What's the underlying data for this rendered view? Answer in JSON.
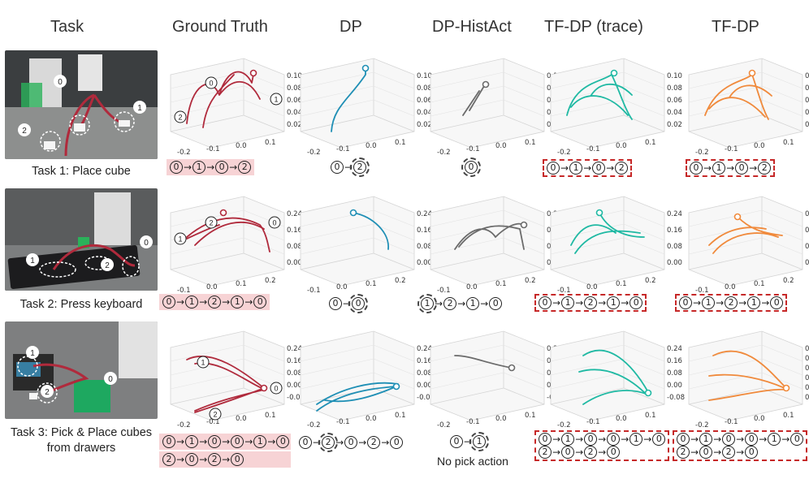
{
  "columns": [
    "Task",
    "Ground Truth",
    "DP",
    "DP-HistAct",
    "TF-DP (trace)",
    "TF-DP"
  ],
  "tasks": [
    {
      "caption": "Task 1: Place cube"
    },
    {
      "caption": "Task 2: Press keyboard"
    },
    {
      "caption": "Task 3: Pick & Place cubes from drawers"
    }
  ],
  "colors": {
    "ground_truth": "#b02a3c",
    "dp": "#1f8fb5",
    "dp_histact": "#6b6b6b",
    "tf_dp_trace": "#1fb9a3",
    "tf_dp": "#f08a3c",
    "gt_highlight": "#f7d3d5",
    "success_box": "#c62828"
  },
  "rows": [
    {
      "zticks": [
        "0.10",
        "0.08",
        "0.06",
        "0.04",
        "0.02"
      ],
      "xticks": [
        "-0.2",
        "-0.1",
        "0.0",
        "0.1"
      ],
      "gt_sequence": [
        "0",
        "1",
        "0",
        "2"
      ],
      "dp_sequence": [
        "0",
        "2"
      ],
      "histact_sequence": [
        "0"
      ],
      "trace_sequence": [
        "0",
        "1",
        "0",
        "2"
      ],
      "tfdp_sequence": [
        "0",
        "1",
        "0",
        "2"
      ],
      "photo_labels": [
        "0",
        "1",
        "2"
      ]
    },
    {
      "zticks": [
        "0.24",
        "0.16",
        "0.08",
        "0.00"
      ],
      "xticks": [
        "-0.1",
        "0.0",
        "0.1",
        "0.2"
      ],
      "gt_sequence": [
        "0",
        "1",
        "2",
        "1",
        "0"
      ],
      "dp_sequence": [
        "0",
        "0"
      ],
      "histact_sequence": [
        "1",
        "2",
        "1",
        "0"
      ],
      "trace_sequence": [
        "0",
        "1",
        "2",
        "1",
        "0"
      ],
      "tfdp_sequence": [
        "0",
        "1",
        "2",
        "1",
        "0"
      ],
      "photo_labels": [
        "0",
        "1",
        "2"
      ]
    },
    {
      "zticks": [
        "0.24",
        "0.16",
        "0.08",
        "0.00",
        "-0.08"
      ],
      "xticks": [
        "-0.2",
        "-0.1",
        "0.0",
        "0.1"
      ],
      "tfdp_zticks": [
        "0.25",
        "0.20",
        "0.15",
        "0.10",
        "0.05",
        "0.00",
        "-0.1",
        "-0.2",
        "0.0",
        "0.1"
      ],
      "gt_sequence_line1": [
        "0",
        "1",
        "0",
        "0",
        "1",
        "0"
      ],
      "gt_sequence_line2": [
        "2",
        "0",
        "2",
        "0"
      ],
      "dp_sequence": [
        "0",
        "2",
        "0",
        "2",
        "0"
      ],
      "histact_sequence": [
        "0",
        "1"
      ],
      "histact_note": "No pick action",
      "trace_sequence_line1": [
        "0",
        "1",
        "0",
        "0",
        "1",
        "0"
      ],
      "trace_sequence_line2": [
        "2",
        "0",
        "2",
        "0"
      ],
      "tfdp_sequence_line1": [
        "0",
        "1",
        "0",
        "0",
        "1",
        "0"
      ],
      "tfdp_sequence_line2": [
        "2",
        "0",
        "2",
        "0"
      ],
      "photo_labels": [
        "0",
        "1",
        "2"
      ]
    }
  ]
}
